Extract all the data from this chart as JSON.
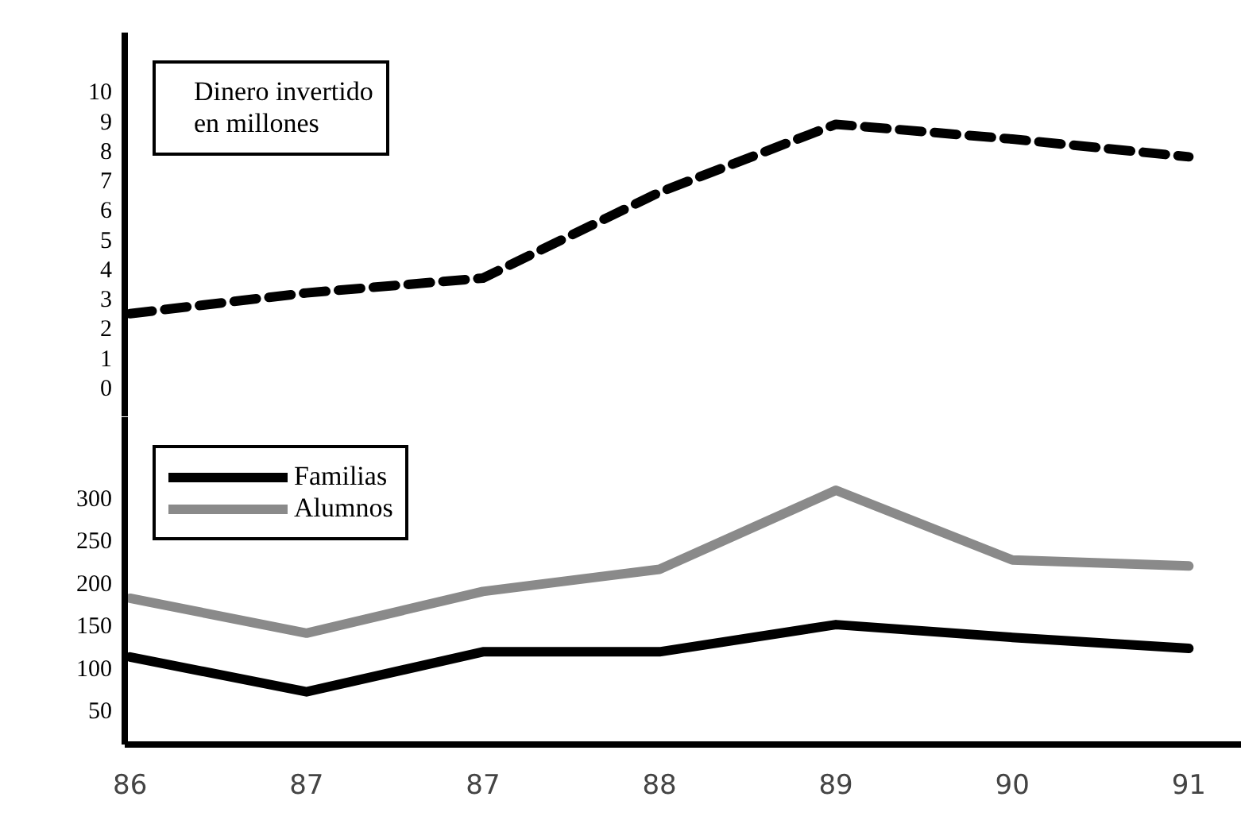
{
  "chart_data": [
    {
      "type": "line",
      "categories": [
        "86",
        "87",
        "87",
        "88",
        "89",
        "90",
        "91"
      ],
      "series": [
        {
          "name": "Dinero invertido en millones",
          "color": "#000000",
          "values": [
            2.5,
            3.2,
            3.7,
            6.6,
            8.9,
            8.4,
            7.8
          ]
        }
      ],
      "line_style": "dashed",
      "ylim": [
        -1,
        12
      ],
      "yticks": [
        0,
        1,
        2,
        3,
        4,
        5,
        6,
        7,
        8,
        9,
        10
      ],
      "tick_labels": "y",
      "legend": "top left",
      "grid": false
    },
    {
      "type": "line",
      "categories": [
        "86",
        "87",
        "87",
        "88",
        "89",
        "90",
        "91"
      ],
      "series": [
        {
          "name": "Familias",
          "color": "#000000",
          "values": [
            113,
            72,
            119,
            119,
            151,
            136,
            123
          ]
        },
        {
          "name": "Alumnos",
          "color": "#8a8a8a",
          "values": [
            182,
            141,
            190,
            216,
            309,
            227,
            220
          ]
        }
      ],
      "line_style": "solid",
      "ylim": [
        10,
        395
      ],
      "yticks": [
        50,
        100,
        150,
        200,
        250,
        300
      ],
      "legend": "top left",
      "grid": false
    }
  ]
}
